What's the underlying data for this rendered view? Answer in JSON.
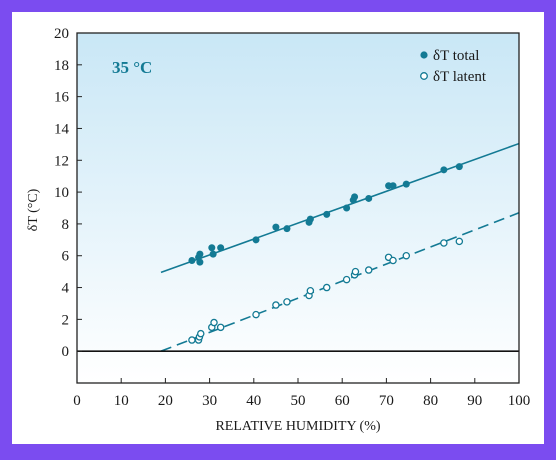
{
  "chart_data": {
    "type": "scatter",
    "annotation": "35 °C",
    "xlabel": "RELATIVE HUMIDITY (%)",
    "ylabel": "δT (°C)",
    "xlim": [
      0,
      100
    ],
    "ylim": [
      -2,
      20
    ],
    "x_ticks": [
      0,
      10,
      20,
      30,
      40,
      50,
      60,
      70,
      80,
      90,
      100
    ],
    "y_ticks": [
      0,
      2,
      4,
      6,
      8,
      10,
      12,
      14,
      16,
      18,
      20
    ],
    "grid": false,
    "legend_position": "top-right",
    "colors": {
      "series": "#137a94",
      "background_top": "#c9e7f6",
      "background_bottom": "#ffffff",
      "frame": "#7b4cf0"
    },
    "series": [
      {
        "name": "δT total",
        "marker": "filled-circle",
        "points": [
          [
            26,
            5.7
          ],
          [
            27.5,
            5.9
          ],
          [
            27.8,
            5.6
          ],
          [
            27.8,
            6.1
          ],
          [
            30.5,
            6.5
          ],
          [
            30.8,
            6.1
          ],
          [
            32.5,
            6.5
          ],
          [
            40.5,
            7
          ],
          [
            45,
            7.8
          ],
          [
            47.5,
            7.7
          ],
          [
            52.5,
            8.1
          ],
          [
            52.8,
            8.3
          ],
          [
            56.5,
            8.6
          ],
          [
            61,
            9
          ],
          [
            62.5,
            9.5
          ],
          [
            62.8,
            9.7
          ],
          [
            66,
            9.6
          ],
          [
            70.5,
            10.4
          ],
          [
            71.5,
            10.4
          ],
          [
            74.5,
            10.5
          ],
          [
            83,
            11.4
          ],
          [
            86.5,
            11.6
          ]
        ],
        "fit": {
          "style": "solid",
          "x": [
            19,
            100
          ],
          "y": [
            4.95,
            13.05
          ]
        }
      },
      {
        "name": "δT latent",
        "marker": "open-circle",
        "points": [
          [
            26,
            0.7
          ],
          [
            27.5,
            0.7
          ],
          [
            27.7,
            0.9
          ],
          [
            28,
            1.1
          ],
          [
            30.5,
            1.5
          ],
          [
            31,
            1.8
          ],
          [
            32.5,
            1.5
          ],
          [
            40.5,
            2.3
          ],
          [
            45,
            2.9
          ],
          [
            47.5,
            3.1
          ],
          [
            52.5,
            3.5
          ],
          [
            52.8,
            3.8
          ],
          [
            56.5,
            4
          ],
          [
            61,
            4.5
          ],
          [
            62.8,
            4.8
          ],
          [
            63,
            5
          ],
          [
            66,
            5.1
          ],
          [
            70.5,
            5.9
          ],
          [
            71.5,
            5.7
          ],
          [
            74.5,
            6
          ],
          [
            83,
            6.8
          ],
          [
            86.5,
            6.9
          ]
        ],
        "fit": {
          "style": "dashed",
          "x": [
            19,
            100
          ],
          "y": [
            0,
            8.7
          ]
        }
      }
    ]
  }
}
